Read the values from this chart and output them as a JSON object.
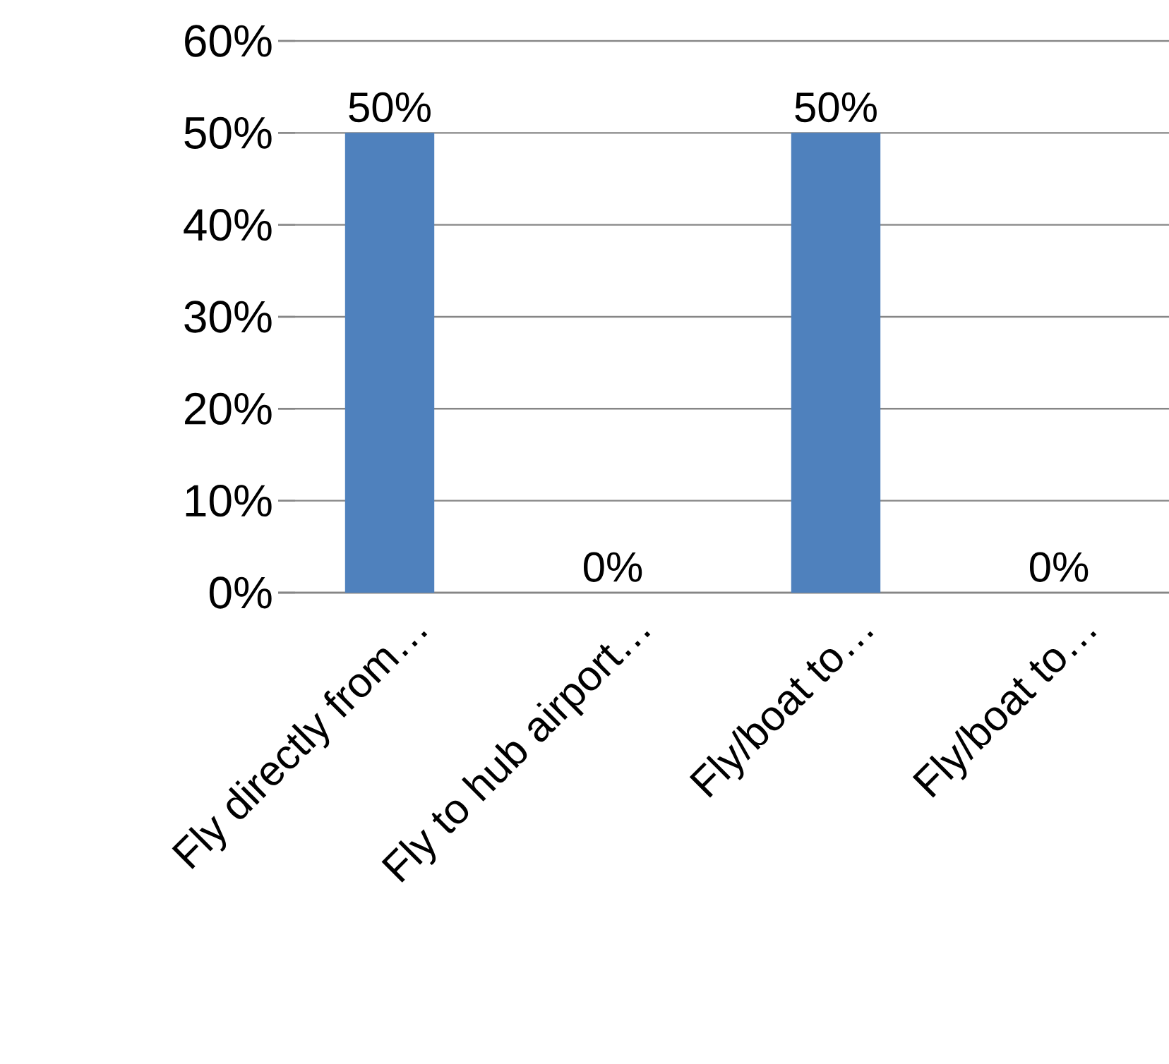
{
  "chart_data": {
    "type": "bar",
    "categories": [
      "Fly directly from…",
      "Fly to hub airport…",
      "Fly/boat to…",
      "Fly/boat to…"
    ],
    "values": [
      50,
      0,
      50,
      0
    ],
    "value_labels": [
      "50%",
      "0%",
      "50%",
      "0%"
    ],
    "color": "#4f81bd",
    "ylim": [
      0,
      60
    ],
    "yticks": [
      {
        "value": 0,
        "label": "0%"
      },
      {
        "value": 10,
        "label": "10%"
      },
      {
        "value": 20,
        "label": "20%"
      },
      {
        "value": 30,
        "label": "30%"
      },
      {
        "value": 40,
        "label": "40%"
      },
      {
        "value": 50,
        "label": "50%"
      },
      {
        "value": 60,
        "label": "60%"
      }
    ],
    "grid": "y"
  }
}
